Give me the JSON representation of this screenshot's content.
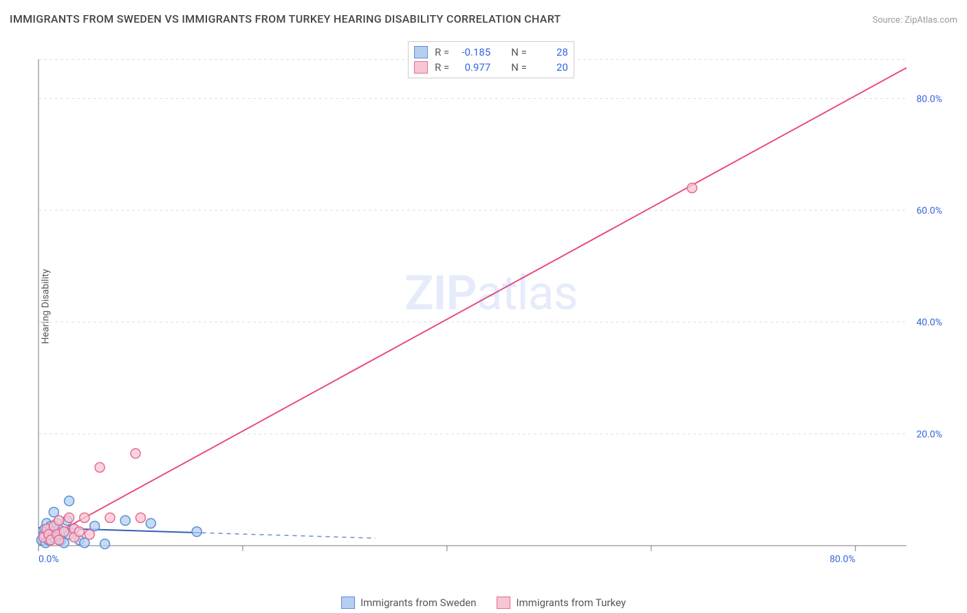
{
  "header": {
    "title": "IMMIGRANTS FROM SWEDEN VS IMMIGRANTS FROM TURKEY HEARING DISABILITY CORRELATION CHART",
    "source": "Source: ZipAtlas.com"
  },
  "yaxis_label": "Hearing Disability",
  "watermark": {
    "bold": "ZIP",
    "rest": "atlas"
  },
  "chart": {
    "type": "scatter-with-regression",
    "background_color": "#ffffff",
    "grid_color": "#dddddd",
    "axis_label_color": "#3366dd",
    "x_range": [
      0,
      85
    ],
    "y_range": [
      0,
      90
    ],
    "x_ticks": [
      {
        "v": 0,
        "label": "0.0%"
      },
      {
        "v": 20,
        "label": ""
      },
      {
        "v": 40,
        "label": ""
      },
      {
        "v": 60,
        "label": ""
      },
      {
        "v": 80,
        "label": "80.0%"
      }
    ],
    "y_ticks": [
      {
        "v": 20,
        "label": "20.0%"
      },
      {
        "v": 40,
        "label": "40.0%"
      },
      {
        "v": 60,
        "label": "60.0%"
      },
      {
        "v": 80,
        "label": "80.0%"
      }
    ],
    "series": [
      {
        "id": "sweden",
        "label": "Immigrants from Sweden",
        "fill": "#b6cff0",
        "stroke": "#5a8ed6",
        "line_color": "#2e5fb3",
        "r_value": "-0.185",
        "n_value": "28",
        "regression": {
          "x1": 0,
          "y1": 3.2,
          "x2": 16,
          "y2": 2.3,
          "dash_extend_to_x": 33
        },
        "points": [
          {
            "x": 0.3,
            "y": 1.0
          },
          {
            "x": 0.5,
            "y": 2.0
          },
          {
            "x": 0.6,
            "y": 3.0
          },
          {
            "x": 0.7,
            "y": 0.5
          },
          {
            "x": 0.8,
            "y": 4.0
          },
          {
            "x": 1.0,
            "y": 2.0
          },
          {
            "x": 1.0,
            "y": 1.0
          },
          {
            "x": 1.2,
            "y": 3.5
          },
          {
            "x": 1.3,
            "y": 2.5
          },
          {
            "x": 1.5,
            "y": 6.0
          },
          {
            "x": 1.5,
            "y": 1.5
          },
          {
            "x": 1.8,
            "y": 4.0
          },
          {
            "x": 2.0,
            "y": 2.0
          },
          {
            "x": 2.0,
            "y": 3.0
          },
          {
            "x": 2.2,
            "y": 1.0
          },
          {
            "x": 2.5,
            "y": 2.5
          },
          {
            "x": 2.5,
            "y": 0.5
          },
          {
            "x": 2.8,
            "y": 4.5
          },
          {
            "x": 3.0,
            "y": 8.0
          },
          {
            "x": 3.0,
            "y": 2.0
          },
          {
            "x": 3.5,
            "y": 3.0
          },
          {
            "x": 4.0,
            "y": 1.0
          },
          {
            "x": 4.5,
            "y": 0.5
          },
          {
            "x": 5.5,
            "y": 3.5
          },
          {
            "x": 6.5,
            "y": 0.3
          },
          {
            "x": 8.5,
            "y": 4.5
          },
          {
            "x": 11.0,
            "y": 4.0
          },
          {
            "x": 15.5,
            "y": 2.5
          }
        ]
      },
      {
        "id": "turkey",
        "label": "Immigrants from Turkey",
        "fill": "#f7c6d3",
        "stroke": "#e66a8f",
        "line_color": "#e94b7a",
        "r_value": "0.977",
        "n_value": "20",
        "regression": {
          "x1": 0,
          "y1": 0.5,
          "x2": 85,
          "y2": 85.5
        },
        "points": [
          {
            "x": 0.5,
            "y": 1.5
          },
          {
            "x": 0.8,
            "y": 3.0
          },
          {
            "x": 1.0,
            "y": 2.0
          },
          {
            "x": 1.2,
            "y": 1.0
          },
          {
            "x": 1.5,
            "y": 3.5
          },
          {
            "x": 1.8,
            "y": 2.0
          },
          {
            "x": 2.0,
            "y": 1.0
          },
          {
            "x": 2.0,
            "y": 4.5
          },
          {
            "x": 2.5,
            "y": 2.5
          },
          {
            "x": 3.0,
            "y": 5.0
          },
          {
            "x": 3.5,
            "y": 3.0
          },
          {
            "x": 3.5,
            "y": 1.5
          },
          {
            "x": 4.0,
            "y": 2.5
          },
          {
            "x": 4.5,
            "y": 5.0
          },
          {
            "x": 5.0,
            "y": 2.0
          },
          {
            "x": 6.0,
            "y": 14.0
          },
          {
            "x": 7.0,
            "y": 5.0
          },
          {
            "x": 9.5,
            "y": 16.5
          },
          {
            "x": 10.0,
            "y": 5.0
          },
          {
            "x": 64.0,
            "y": 64.0
          }
        ]
      }
    ]
  },
  "legend_top": {
    "r_label": "R =",
    "n_label": "N ="
  }
}
